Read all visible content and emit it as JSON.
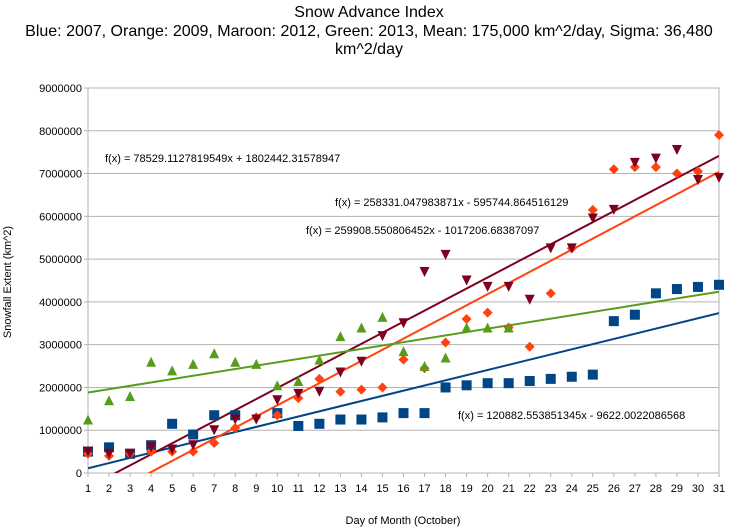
{
  "chart_data": {
    "type": "scatter",
    "title": "Snow Advance Index",
    "subtitle": "Blue: 2007, Orange: 2009, Maroon: 2012, Green: 2013, Mean: 175,000 km^2/day, Sigma: 36,480 km^2/day",
    "xlabel": "Day of Month (October)",
    "ylabel": "Snowfall Extent (km^2)",
    "xlim": [
      1,
      31
    ],
    "ylim": [
      0,
      9000000
    ],
    "x_ticks": [
      "1",
      "2",
      "3",
      "4",
      "5",
      "6",
      "7",
      "8",
      "9",
      "10",
      "11",
      "12",
      "13",
      "14",
      "15",
      "16",
      "17",
      "18",
      "19",
      "20",
      "21",
      "22",
      "23",
      "24",
      "25",
      "26",
      "27",
      "28",
      "29",
      "30",
      "31"
    ],
    "y_ticks": [
      "0",
      "1000000",
      "2000000",
      "3000000",
      "4000000",
      "5000000",
      "6000000",
      "7000000",
      "8000000",
      "9000000"
    ],
    "grid": "horizontal",
    "series": [
      {
        "color": "#004586",
        "marker": "square",
        "x": [
          1,
          2,
          3,
          4,
          5,
          6,
          7,
          8,
          9,
          10,
          11,
          12,
          13,
          14,
          15,
          16,
          17,
          18,
          19,
          20,
          21,
          22,
          23,
          24,
          25,
          26,
          27,
          28,
          29,
          30,
          31
        ],
        "values": [
          500000,
          600000,
          450000,
          650000,
          1150000,
          900000,
          1350000,
          1350000,
          null,
          1400000,
          1100000,
          1150000,
          1250000,
          1250000,
          1300000,
          1400000,
          1400000,
          2000000,
          2050000,
          2100000,
          2100000,
          2150000,
          2200000,
          2250000,
          2300000,
          3550000,
          3700000,
          4200000,
          4300000,
          4350000,
          4400000
        ],
        "trend": {
          "slope": 120882.553851345,
          "intercept": -9622.0022086568,
          "label": "f(x) = 120882.553851345x - 9622.0022086568"
        }
      },
      {
        "color": "#ff420e",
        "marker": "diamond",
        "x": [
          1,
          2,
          3,
          4,
          5,
          6,
          7,
          8,
          9,
          10,
          11,
          12,
          13,
          14,
          15,
          16,
          17,
          18,
          19,
          20,
          21,
          22,
          23,
          24,
          25,
          26,
          27,
          28,
          29,
          30,
          31
        ],
        "values": [
          450000,
          400000,
          450000,
          500000,
          500000,
          500000,
          700000,
          1050000,
          1300000,
          1350000,
          1750000,
          2200000,
          1900000,
          1950000,
          2000000,
          2650000,
          2450000,
          3050000,
          3600000,
          3750000,
          3400000,
          2950000,
          4200000,
          5250000,
          6150000,
          7100000,
          7150000,
          7150000,
          7000000,
          7050000,
          7900000
        ],
        "trend": {
          "slope": 259908.550806452,
          "intercept": -1017206.68387097,
          "label": "f(x) = 259908.550806452x - 1017206.68387097"
        }
      },
      {
        "color": "#7e0021",
        "marker": "triangle-down",
        "x": [
          1,
          2,
          3,
          4,
          5,
          6,
          7,
          8,
          9,
          10,
          11,
          12,
          13,
          14,
          15,
          16,
          17,
          18,
          19,
          20,
          21,
          22,
          23,
          24,
          25,
          26,
          27,
          28,
          29,
          30,
          31
        ],
        "values": [
          500000,
          450000,
          450000,
          600000,
          550000,
          650000,
          1000000,
          1250000,
          1250000,
          1700000,
          1850000,
          1900000,
          2350000,
          2600000,
          3200000,
          3500000,
          4700000,
          5100000,
          4500000,
          4350000,
          4350000,
          4050000,
          5250000,
          5250000,
          5950000,
          6150000,
          7250000,
          7350000,
          7550000,
          6850000,
          6900000
        ],
        "trend": {
          "slope": 258331.047983871,
          "intercept": -595744.864516129,
          "label": "f(x) = 258331.047983871x - 595744.864516129"
        }
      },
      {
        "color": "#579d1c",
        "marker": "triangle-up",
        "x": [
          1,
          2,
          3,
          4,
          5,
          6,
          7,
          8,
          9,
          10,
          11,
          12,
          13,
          14,
          15,
          16,
          17,
          18,
          19,
          20,
          21
        ],
        "values": [
          1250000,
          1700000,
          1800000,
          2600000,
          2400000,
          2550000,
          2800000,
          2600000,
          2550000,
          2050000,
          2150000,
          2650000,
          3200000,
          3400000,
          3650000,
          2850000,
          2500000,
          2700000,
          3400000,
          3400000,
          3400000
        ],
        "trend": {
          "slope": 78529.1127819549,
          "intercept": 1802442.31578947,
          "label": "f(x) = 78529.1127819549x + 1802442.31578947"
        }
      }
    ]
  }
}
